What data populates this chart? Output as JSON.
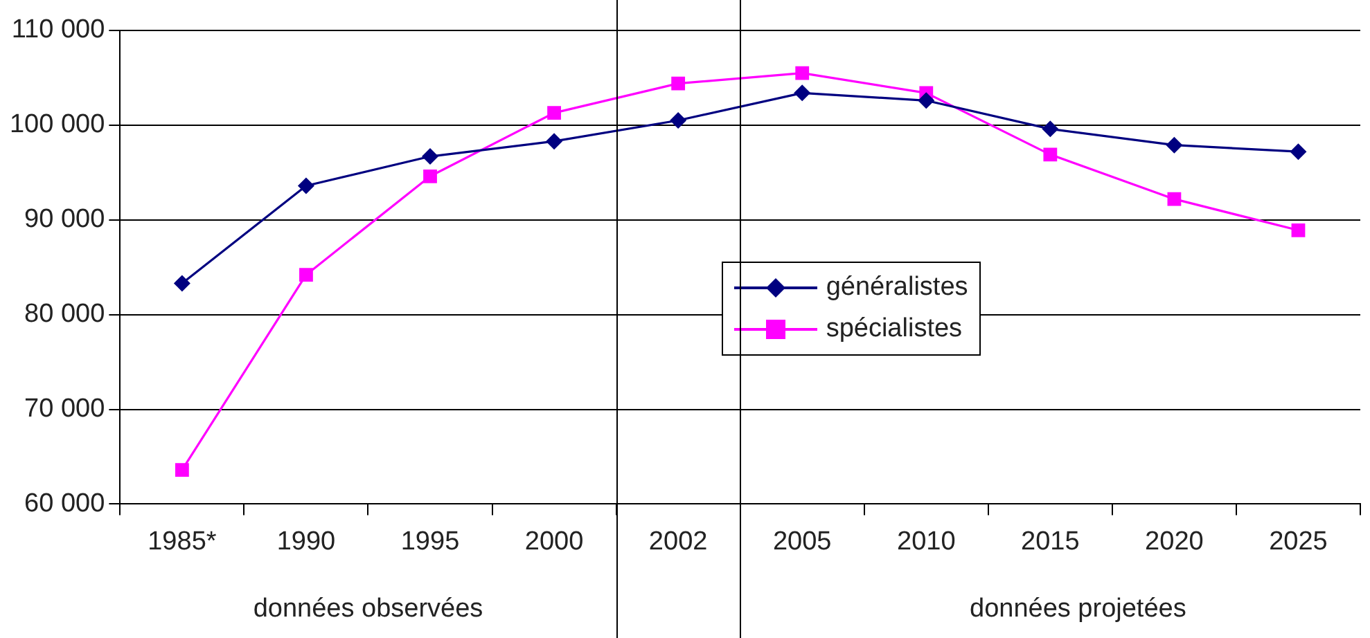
{
  "chart_data": {
    "type": "line",
    "categories": [
      "1985*",
      "1990",
      "1995",
      "2000",
      "2002",
      "2005",
      "2010",
      "2015",
      "2020",
      "2025"
    ],
    "series": [
      {
        "name": "généralistes",
        "color": "#000080",
        "marker": "diamond",
        "values": [
          83300,
          93600,
          96700,
          98300,
          100500,
          103400,
          102600,
          99600,
          97900,
          97200
        ]
      },
      {
        "name": "spécialistes",
        "color": "#ff00ff",
        "marker": "square",
        "values": [
          63600,
          84200,
          94600,
          101300,
          104400,
          105500,
          103400,
          96900,
          92200,
          88900
        ]
      }
    ],
    "ylim": [
      60000,
      110000
    ],
    "yticks": [
      {
        "value": 60000,
        "label": "60 000"
      },
      {
        "value": 70000,
        "label": "70 000"
      },
      {
        "value": 80000,
        "label": "80 000"
      },
      {
        "value": 90000,
        "label": "90 000"
      },
      {
        "value": 100000,
        "label": "100 000"
      },
      {
        "value": 110000,
        "label": "110 000"
      }
    ],
    "grid": "y",
    "legend": "center",
    "line_style": "solid",
    "annotations": [
      "données observées",
      "données projetées"
    ]
  }
}
